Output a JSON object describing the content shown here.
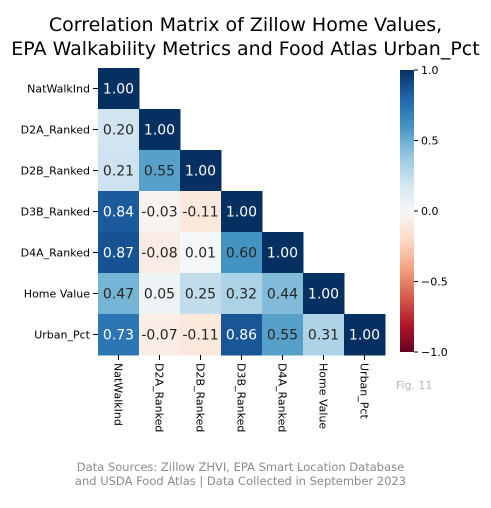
{
  "chart_data": {
    "type": "heatmap",
    "title_lines": [
      "Correlation Matrix of Zillow Home Values,",
      "EPA Walkability Metrics and Food Atlas Urban_Pct"
    ],
    "labels": [
      "NatWalkInd",
      "D2A_Ranked",
      "D2B_Ranked",
      "D3B_Ranked",
      "D4A_Ranked",
      "Home Value",
      "Urban_Pct"
    ],
    "values": [
      [
        1.0
      ],
      [
        0.2,
        1.0
      ],
      [
        0.21,
        0.55,
        1.0
      ],
      [
        0.84,
        -0.03,
        -0.11,
        1.0
      ],
      [
        0.87,
        -0.08,
        0.01,
        0.6,
        1.0
      ],
      [
        0.47,
        0.05,
        0.25,
        0.32,
        0.44,
        1.0
      ],
      [
        0.73,
        -0.07,
        -0.11,
        0.86,
        0.55,
        0.31,
        1.0
      ]
    ],
    "mask": "upper-triangle",
    "colormap": "RdBu",
    "vmin": -1.0,
    "vmax": 1.0,
    "colorbar_ticks": [
      "1.0",
      "0.5",
      "0.0",
      "−0.5",
      "−1.0"
    ],
    "colorbar_tick_values": [
      1.0,
      0.5,
      0.0,
      -0.5,
      -1.0
    ],
    "annotation_format": "0.00"
  },
  "figure_label": "Fig. 11",
  "source_lines": [
    "Data Sources: Zillow ZHVI, EPA Smart Location Database",
    "and USDA Food Atlas | Data Collected in September 2023"
  ]
}
